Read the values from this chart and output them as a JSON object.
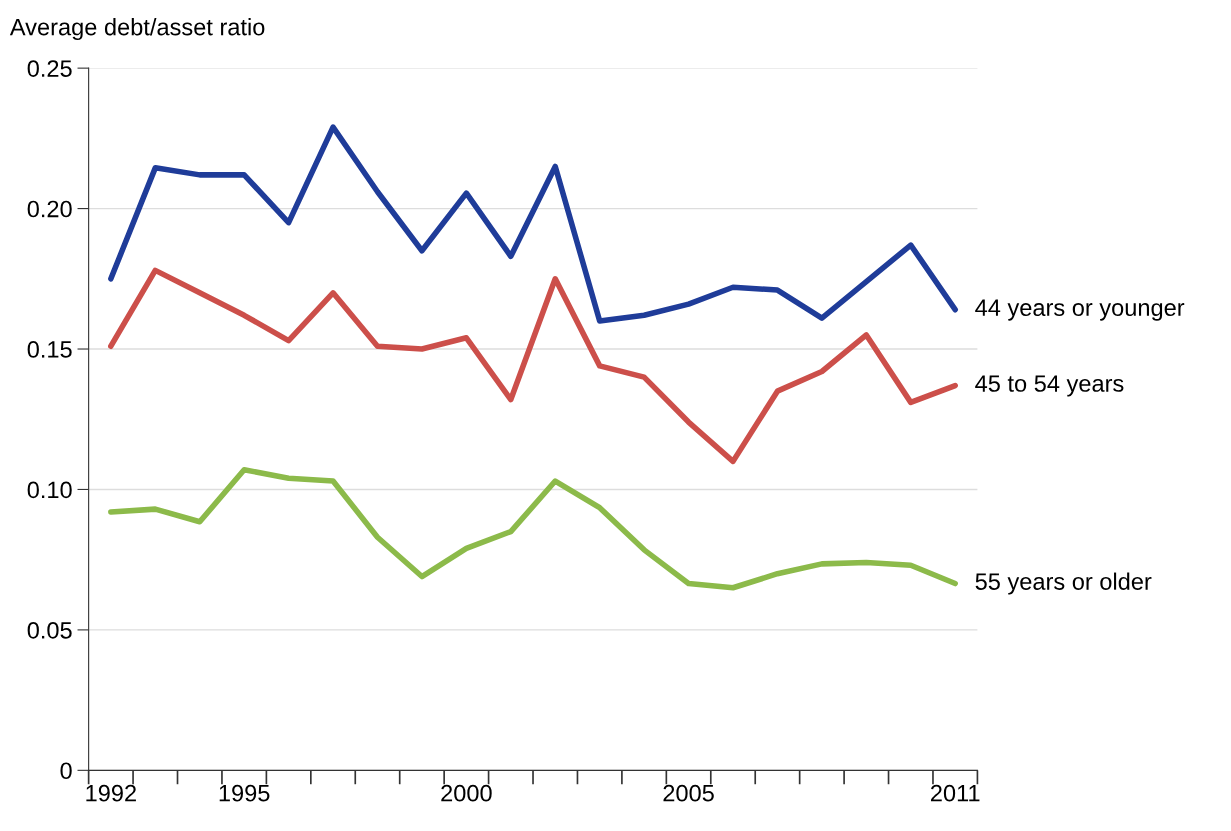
{
  "chart_data": {
    "type": "line",
    "ylabel": "Average debt/asset ratio",
    "x": [
      1992,
      1993,
      1994,
      1995,
      1996,
      1997,
      1998,
      1999,
      2000,
      2001,
      2002,
      2003,
      2004,
      2005,
      2006,
      2007,
      2008,
      2009,
      2010,
      2011
    ],
    "series": [
      {
        "name": "44 years or younger",
        "color": "#1f3c99",
        "values": [
          0.175,
          0.2145,
          0.212,
          0.212,
          0.195,
          0.229,
          0.206,
          0.185,
          0.2055,
          0.183,
          0.215,
          0.16,
          0.162,
          0.166,
          0.172,
          0.171,
          0.161,
          0.174,
          0.187,
          0.164
        ]
      },
      {
        "name": "45 to 54 years",
        "color": "#cc4f4a",
        "values": [
          0.151,
          0.178,
          0.17,
          0.162,
          0.153,
          0.17,
          0.151,
          0.15,
          0.154,
          0.132,
          0.175,
          0.144,
          0.14,
          0.124,
          0.11,
          0.135,
          0.142,
          0.155,
          0.131,
          0.137
        ]
      },
      {
        "name": "55 years or older",
        "color": "#8cba4a",
        "values": [
          0.092,
          0.093,
          0.0885,
          0.107,
          0.104,
          0.103,
          0.083,
          0.069,
          0.079,
          0.085,
          0.103,
          0.0935,
          0.0785,
          0.0665,
          0.065,
          0.07,
          0.0735,
          0.074,
          0.073,
          0.0665
        ]
      }
    ],
    "xlim": [
      1991.5,
      2011.5
    ],
    "xticks": [
      1992,
      1995,
      2000,
      2005,
      2011,
      {
        "value": 1991.5,
        "label": null
      },
      {
        "value": 1992.5,
        "label": null
      },
      {
        "value": 1993.5,
        "label": null
      },
      {
        "value": 1994.5,
        "label": null
      },
      {
        "value": 1995.5,
        "label": null
      },
      {
        "value": 1996.5,
        "label": null
      },
      {
        "value": 1997.5,
        "label": null
      },
      {
        "value": 1998.5,
        "label": null
      },
      {
        "value": 1999.5,
        "label": null
      },
      {
        "value": 2000.5,
        "label": null
      },
      {
        "value": 2001.5,
        "label": null
      },
      {
        "value": 2002.5,
        "label": null
      },
      {
        "value": 2003.5,
        "label": null
      },
      {
        "value": 2004.5,
        "label": null
      },
      {
        "value": 2005.5,
        "label": null
      },
      {
        "value": 2006.5,
        "label": null
      },
      {
        "value": 2007.5,
        "label": null
      },
      {
        "value": 2008.5,
        "label": null
      },
      {
        "value": 2009.5,
        "label": null
      },
      {
        "value": 2010.5,
        "label": null
      },
      {
        "value": 2011.5,
        "label": null
      }
    ],
    "ylim": [
      0,
      0.25
    ],
    "yticks": [
      0,
      {
        "value": 0.05,
        "label": "0.05"
      },
      {
        "value": 0.1,
        "label": "0.10"
      },
      {
        "value": 0.15,
        "label": "0.15"
      },
      {
        "value": 0.2,
        "label": "0.20"
      },
      {
        "value": 0.25,
        "label": "0.25"
      }
    ],
    "grid": "y",
    "line_style": "solid",
    "marker": "none",
    "legend": false
  }
}
